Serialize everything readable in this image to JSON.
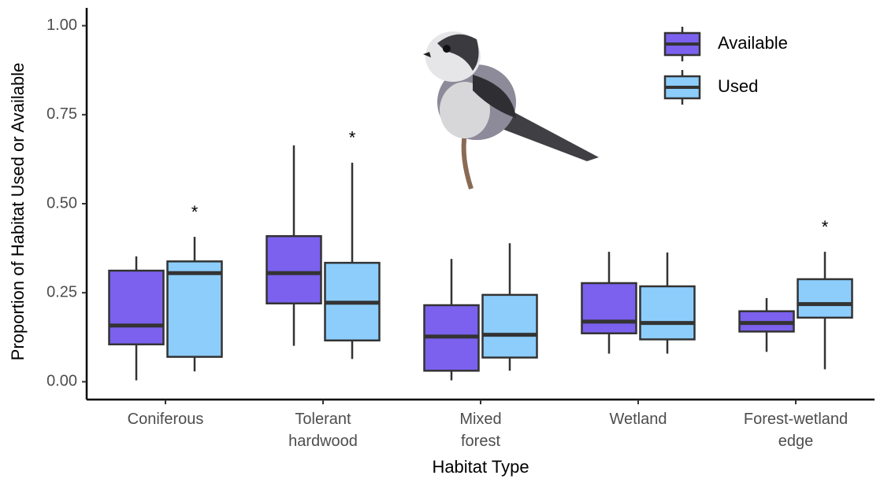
{
  "chart_data": {
    "type": "box",
    "x_label": "Habitat Type",
    "y_label": "Proportion of Habitat Used or Available",
    "categories": [
      "Coniferous",
      "Tolerant hardwood",
      "Mixed forest",
      "Wetland",
      "Forest-wetland edge"
    ],
    "ylim": [
      -0.05,
      1.05
    ],
    "yticks": [
      {
        "value": 0,
        "label": "0.00"
      },
      {
        "value": 0.25,
        "label": "0.25"
      },
      {
        "value": 0.5,
        "label": "0.50"
      },
      {
        "value": 0.75,
        "label": "0.75"
      },
      {
        "value": 1,
        "label": "1.00"
      }
    ],
    "grid": false,
    "legend": "top-right",
    "series": [
      {
        "name": "Available",
        "color": "#7b61ee",
        "min": [
          0.004,
          0.101,
          0.004,
          0.079,
          0.084
        ],
        "q1": [
          0.105,
          0.22,
          0.031,
          0.136,
          0.141
        ],
        "median": [
          0.158,
          0.305,
          0.127,
          0.169,
          0.165
        ],
        "q3": [
          0.312,
          0.409,
          0.215,
          0.277,
          0.198
        ],
        "max": [
          0.352,
          0.664,
          0.345,
          0.365,
          0.235
        ]
      },
      {
        "name": "Used",
        "color": "#8ccdfc",
        "min": [
          0.029,
          0.064,
          0.031,
          0.079,
          0.035
        ],
        "q1": [
          0.07,
          0.116,
          0.068,
          0.119,
          0.18
        ],
        "median": [
          0.305,
          0.222,
          0.132,
          0.165,
          0.218
        ],
        "q3": [
          0.338,
          0.334,
          0.244,
          0.268,
          0.288
        ],
        "max": [
          0.407,
          0.615,
          0.389,
          0.363,
          0.365
        ],
        "significance": [
          "*",
          "*",
          null,
          null,
          "*"
        ]
      }
    ]
  }
}
